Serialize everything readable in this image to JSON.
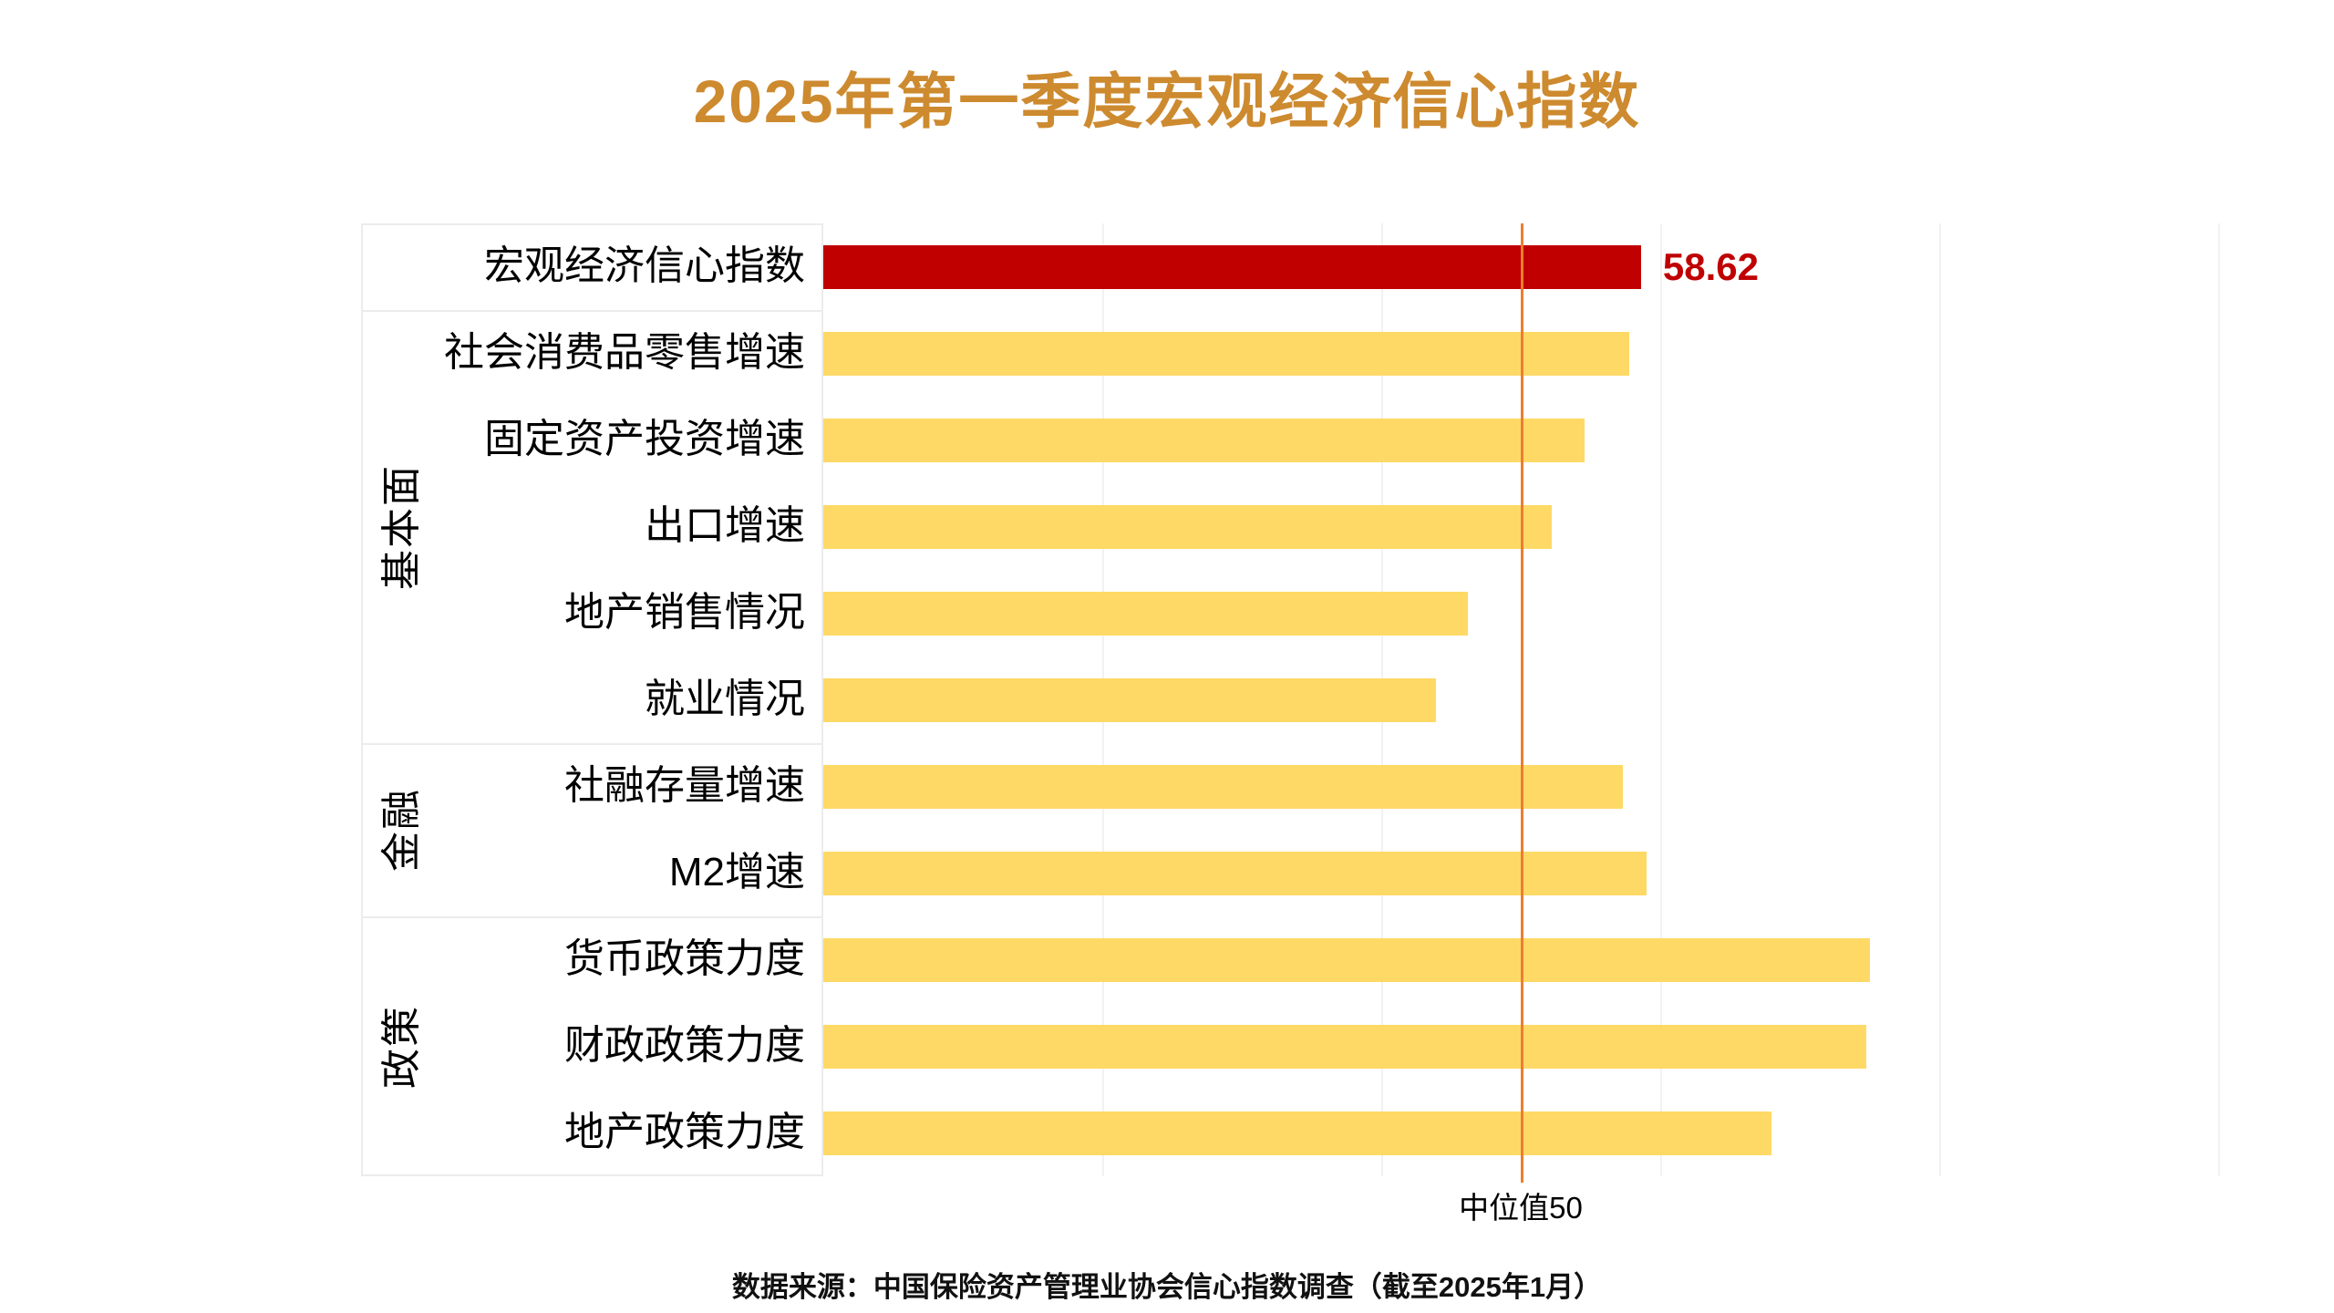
{
  "page": {
    "title": "2025年第一季度宏观经济信心指数",
    "source_note": "数据来源：中国保险资产管理业协会信心指数调查（截至2025年1月）"
  },
  "colors": {
    "title_text": "#CD8A2F",
    "highlight_bar": "#C00000",
    "bar": "#FFD966",
    "reference_line": "#ED7D31",
    "gridline": "#F2F2F2",
    "panel_border": "#ECECEC",
    "value_label_text": "#C00000"
  },
  "annotations": {
    "macro_index_value": "58.62",
    "median_label": "中位值50"
  },
  "chart_data": {
    "type": "bar",
    "orientation": "horizontal",
    "title": "2025年第一季度宏观经济信心指数",
    "categories": [
      "宏观经济信心指数",
      "社会消费品零售增速",
      "固定资产投资增速",
      "出口增速",
      "地产销售情况",
      "就业情况",
      "社融存量增速",
      "M2增速",
      "货币政策力度",
      "财政政策力度",
      "地产政策力度"
    ],
    "values": [
      58.62,
      57.8,
      54.6,
      52.2,
      46.2,
      43.9,
      57.3,
      59.0,
      75.0,
      74.8,
      68.0
    ],
    "highlight_index": 0,
    "xlim": [
      0,
      100
    ],
    "gridline_interval": 20,
    "grid": "vertical-light",
    "legend": "none",
    "reference_line": {
      "value": 50,
      "label": "中位值50"
    },
    "groups": [
      {
        "label": "基本面",
        "start_index": 1,
        "end_index": 5
      },
      {
        "label": "金融",
        "start_index": 6,
        "end_index": 7
      },
      {
        "label": "政策",
        "start_index": 8,
        "end_index": 10
      }
    ]
  }
}
